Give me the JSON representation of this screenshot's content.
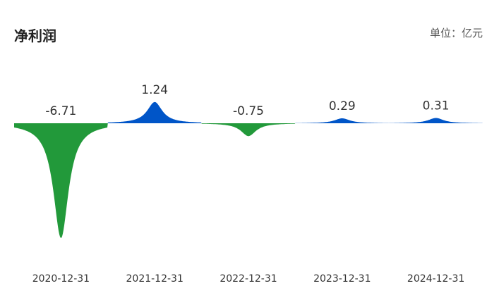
{
  "chart_data": {
    "type": "spike",
    "title": "净利润",
    "unit_label": "单位：亿元",
    "categories": [
      "2020-12-31",
      "2021-12-31",
      "2022-12-31",
      "2023-12-31",
      "2024-12-31"
    ],
    "values": [
      -6.71,
      1.24,
      -0.75,
      0.29,
      0.31
    ],
    "positive_color": "#0055c8",
    "negative_color": "#22993a"
  }
}
